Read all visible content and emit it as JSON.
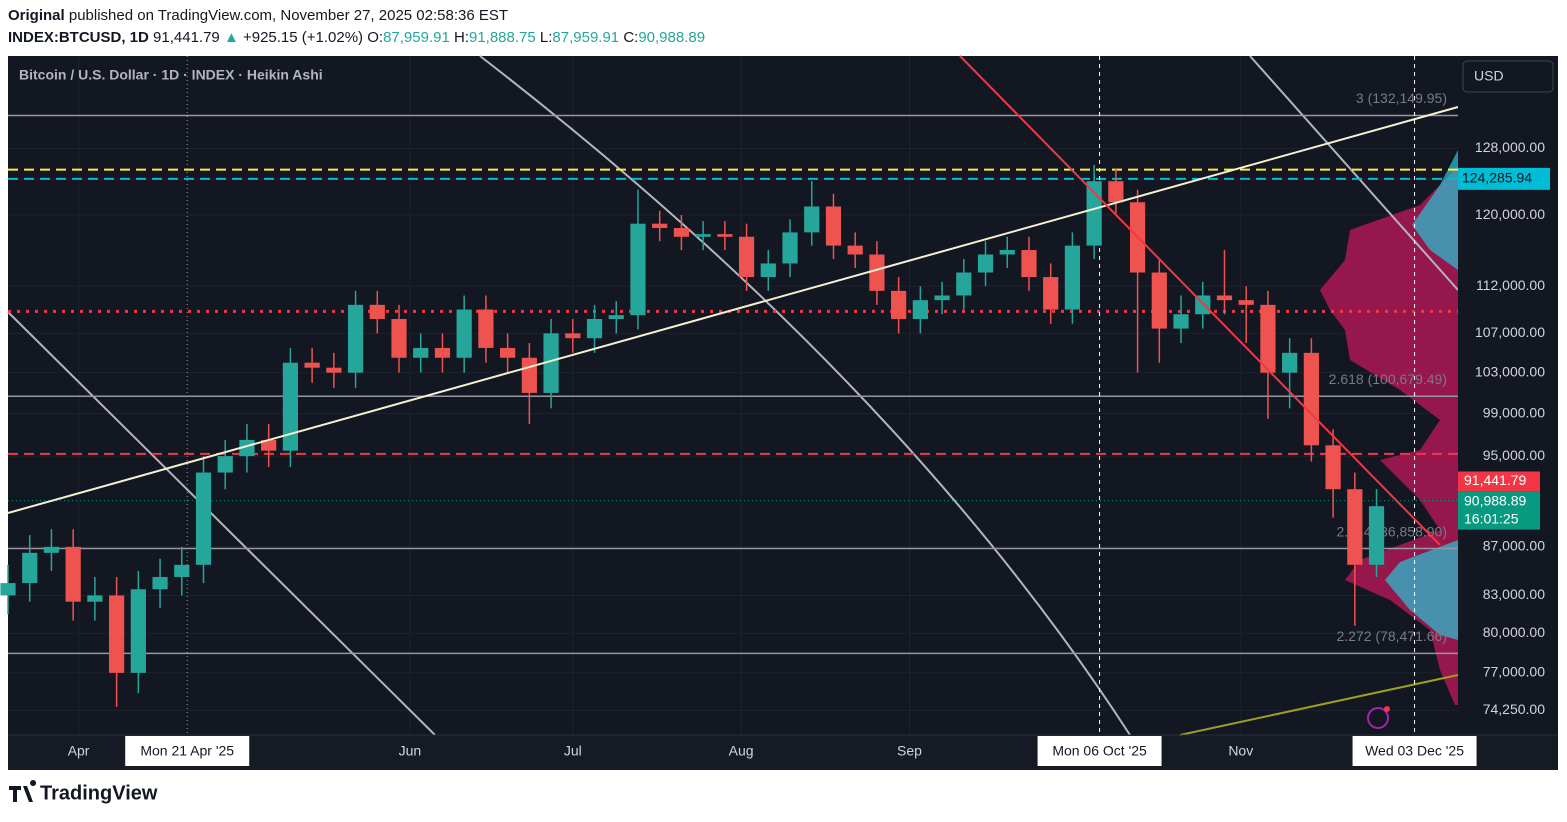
{
  "header": {
    "author": "Original",
    "published": "published on TradingView.com, November 27, 2025 02:58:36 EST",
    "symbol": "INDEX:BTCUSD, 1D",
    "last": "91,441.79",
    "arrow": "▲",
    "change": "+925.15 (+1.02%)",
    "ohlc": [
      {
        "label": "O:",
        "value": "87,959.91"
      },
      {
        "label": "H:",
        "value": "91,888.75"
      },
      {
        "label": "L:",
        "value": "87,959.91"
      },
      {
        "label": "C:",
        "value": "90,988.89"
      }
    ]
  },
  "footer": {
    "brand": "TradingView"
  },
  "chart_data": {
    "type": "candlestick",
    "title": "Bitcoin / U.S. Dollar · 1D · INDEX · Heikin Ashi",
    "currency": "USD",
    "log_scale": true,
    "grid": true,
    "up_color": "#26a69a",
    "down_color": "#ef5350",
    "x": [
      "2025-03-19",
      "2025-03-23",
      "2025-03-27",
      "2025-03-31",
      "2025-04-04",
      "2025-04-08",
      "2025-04-12",
      "2025-04-16",
      "2025-04-20",
      "2025-04-24",
      "2025-04-28",
      "2025-05-02",
      "2025-05-06",
      "2025-05-10",
      "2025-05-14",
      "2025-05-18",
      "2025-05-22",
      "2025-05-26",
      "2025-05-30",
      "2025-06-03",
      "2025-06-07",
      "2025-06-11",
      "2025-06-15",
      "2025-06-19",
      "2025-06-23",
      "2025-06-27",
      "2025-07-01",
      "2025-07-05",
      "2025-07-09",
      "2025-07-13",
      "2025-07-17",
      "2025-07-21",
      "2025-07-25",
      "2025-07-29",
      "2025-08-02",
      "2025-08-06",
      "2025-08-10",
      "2025-08-14",
      "2025-08-18",
      "2025-08-22",
      "2025-08-26",
      "2025-08-30",
      "2025-09-03",
      "2025-09-07",
      "2025-09-11",
      "2025-09-15",
      "2025-09-19",
      "2025-09-23",
      "2025-09-27",
      "2025-10-01",
      "2025-10-05",
      "2025-10-09",
      "2025-10-13",
      "2025-10-17",
      "2025-10-21",
      "2025-10-25",
      "2025-10-29",
      "2025-11-02",
      "2025-11-06",
      "2025-11-10",
      "2025-11-14",
      "2025-11-18",
      "2025-11-22",
      "2025-11-26"
    ],
    "open": [
      83000,
      84000,
      86500,
      87000,
      82500,
      83000,
      77000,
      83500,
      84500,
      85500,
      93500,
      95000,
      96500,
      95500,
      104000,
      103500,
      103000,
      110000,
      108500,
      104500,
      105500,
      104500,
      109500,
      105500,
      104500,
      101000,
      107000,
      106500,
      108500,
      108900,
      119000,
      118500,
      117500,
      117800,
      117500,
      113000,
      114500,
      118000,
      121000,
      116500,
      115500,
      111500,
      108500,
      110500,
      111000,
      113500,
      115500,
      116000,
      113000,
      109500,
      116500,
      124000,
      121500,
      113500,
      107500,
      109000,
      111000,
      110500,
      110000,
      103000,
      105000,
      96000,
      92000,
      85500
    ],
    "high": [
      85500,
      88000,
      88500,
      88500,
      84500,
      84500,
      85000,
      86000,
      87000,
      95000,
      96500,
      98000,
      98000,
      105500,
      105500,
      105000,
      111500,
      111500,
      110000,
      107000,
      107000,
      111000,
      111000,
      107000,
      106000,
      108500,
      108500,
      110000,
      110400,
      123000,
      120500,
      120000,
      119300,
      119300,
      119000,
      116000,
      119500,
      124000,
      122500,
      118000,
      117000,
      113000,
      112000,
      112500,
      115000,
      117000,
      117500,
      117500,
      114500,
      118000,
      126000,
      125500,
      123000,
      115000,
      111000,
      112500,
      116000,
      112000,
      111500,
      106500,
      106500,
      97500,
      93500,
      92000
    ],
    "low": [
      81500,
      82500,
      85000,
      81000,
      81000,
      74500,
      75500,
      82000,
      83000,
      84000,
      92000,
      93500,
      94000,
      94000,
      102000,
      101500,
      101500,
      107000,
      103000,
      103000,
      103000,
      103000,
      104000,
      103000,
      98000,
      99500,
      105000,
      105000,
      107000,
      107400,
      117000,
      116000,
      116000,
      116000,
      111500,
      111500,
      113000,
      116500,
      115000,
      114000,
      110000,
      107000,
      107000,
      109000,
      109500,
      112000,
      114000,
      111500,
      108000,
      108000,
      115000,
      120000,
      103000,
      104000,
      106000,
      107500,
      109000,
      106000,
      98500,
      99500,
      94500,
      89500,
      80600,
      84500
    ],
    "close": [
      84000,
      86500,
      87000,
      82500,
      83000,
      77000,
      83500,
      84500,
      85500,
      93500,
      95000,
      96500,
      95500,
      104000,
      103500,
      103000,
      110000,
      108500,
      104500,
      105500,
      104500,
      109500,
      105500,
      104500,
      101000,
      107000,
      106500,
      108500,
      108900,
      119000,
      118500,
      117500,
      117800,
      117500,
      113000,
      114500,
      118000,
      121000,
      116500,
      115500,
      111500,
      108500,
      110500,
      111000,
      113500,
      115500,
      116000,
      113000,
      109500,
      116500,
      124000,
      121500,
      113500,
      107500,
      109000,
      111000,
      110500,
      110000,
      103000,
      105000,
      96000,
      92000,
      85500,
      90500
    ],
    "ylim": [
      72500,
      140000
    ],
    "yticks": [
      {
        "value": 74250,
        "label": "74,250.00"
      },
      {
        "value": 77000,
        "label": "77,000.00"
      },
      {
        "value": 80000,
        "label": "80,000.00"
      },
      {
        "value": 83000,
        "label": "83,000.00"
      },
      {
        "value": 87000,
        "label": "87,000.00"
      },
      {
        "value": 95000,
        "label": "95,000.00"
      },
      {
        "value": 99000,
        "label": "99,000.00"
      },
      {
        "value": 103000,
        "label": "103,000.00"
      },
      {
        "value": 107000,
        "label": "107,000.00"
      },
      {
        "value": 112000,
        "label": "112,000.00"
      },
      {
        "value": 120000,
        "label": "120,000.00"
      },
      {
        "value": 128000,
        "label": "128,000.00"
      }
    ],
    "xlim": [
      "2025-03-19",
      "2025-12-11"
    ],
    "xticks": [
      {
        "value": "2025-04-01",
        "label": "Apr"
      },
      {
        "value": "2025-06-01",
        "label": "Jun"
      },
      {
        "value": "2025-07-01",
        "label": "Jul"
      },
      {
        "value": "2025-08-01",
        "label": "Aug"
      },
      {
        "value": "2025-09-01",
        "label": "Sep"
      },
      {
        "value": "2025-11-01",
        "label": "Nov"
      }
    ],
    "markers": [
      {
        "value": "2025-04-21",
        "label": "Mon 21 Apr '25"
      },
      {
        "value": "2025-10-06",
        "label": "Mon 06 Oct '25"
      },
      {
        "value": "2025-12-03",
        "label": "Wed 03 Dec '25"
      }
    ],
    "fib_levels": [
      {
        "value": 132149.95,
        "label": "3 (132,149.95)"
      },
      {
        "value": 100679.49,
        "label": "2.618 (100,679.49)"
      },
      {
        "value": 86858.9,
        "label": "2.414 (86,858.90)"
      },
      {
        "value": 78471.66,
        "label": "2.272 (78,471.66)"
      }
    ],
    "price_lines": [
      {
        "value": 125400,
        "color": "#ffeb3b",
        "style": "dashed"
      },
      {
        "value": 124285.94,
        "label": "124,285.94",
        "color": "#00bcd4",
        "style": "dashed"
      },
      {
        "value": 109300,
        "color": "#f23645",
        "style": "dotted"
      },
      {
        "value": 95200,
        "color": "#f23645",
        "style": "dashed"
      }
    ],
    "price_labels": [
      {
        "value": 91441.79,
        "label": "91,441.79",
        "color": "#f23645"
      },
      {
        "value": 90988.89,
        "label": "90,988.89",
        "sublabel": "16:01:25",
        "color": "#089981"
      }
    ]
  }
}
